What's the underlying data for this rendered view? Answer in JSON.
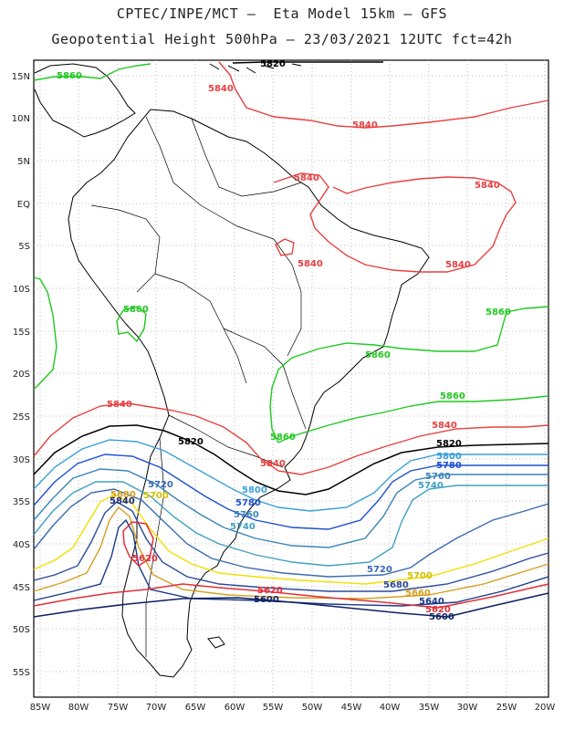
{
  "title_line1": "CPTEC/INPE/MCT –  Eta Model 15km – GFS",
  "title_line2": "Geopotential Height 500hPa – 23/03/2021 12UTC fct=42h",
  "lat_labels": [
    "15N",
    "10N",
    "5N",
    "EQ",
    "5S",
    "10S",
    "15S",
    "20S",
    "25S",
    "30S",
    "35S",
    "40S",
    "45S",
    "50S",
    "55S"
  ],
  "lon_labels": [
    "85W",
    "80W",
    "75W",
    "70W",
    "65W",
    "60W",
    "55W",
    "50W",
    "45W",
    "40W",
    "35W",
    "30W",
    "25W",
    "20W"
  ],
  "colors": {
    "c5560": "#1a2a7a",
    "c5600": "#102060",
    "c5620": "#e0303a",
    "c5640": "#1a3a8a",
    "c5660": "#d4a020",
    "c5680": "#2a4a9a",
    "c5700": "#f0e000",
    "c5720": "#3a6ab0",
    "c5740": "#40a0c0",
    "c5760": "#3a86b8",
    "c5780": "#2050d0",
    "c5800": "#3aa0d8",
    "c5820": "#000000",
    "c5840": "#e84040",
    "c5860": "#20c820"
  },
  "contour_labels": {
    "c5860_a": "5860",
    "c5860_b": "5860",
    "c5860_c": "5860",
    "c5860_d": "5860",
    "c5860_e": "5860",
    "c5860_f": "5860",
    "c5840_a": "5840",
    "c5840_b": "5840",
    "c5840_c": "5840",
    "c5840_d": "5840",
    "c5840_e": "5840",
    "c5840_f": "5840",
    "c5840_g": "5840",
    "c5840_h": "5840",
    "c5840_i": "5840",
    "c5840_j": "5840",
    "c5820_a": "5820",
    "c5820_b": "5820",
    "c5820_c": "5820",
    "c5800_a": "5800",
    "c5800_b": "5800",
    "c5780_a": "5780",
    "c5780_b": "5780",
    "c5760_a": "5760",
    "c5760_b": "5760",
    "c5740_a": "5740",
    "c5740_b": "5740",
    "c5720_a": "5720",
    "c5720_b": "5720",
    "c5700_a": "5700",
    "c5700_b": "5700",
    "c5680_a": "5680",
    "c5680_b": "5680",
    "c5660_a": "5660",
    "c5640_a": "5640",
    "c5620_a": "5620",
    "c5620_b": "5620",
    "c5620_c": "5620",
    "c5600_a": "5600",
    "c5600_b": "5600"
  }
}
